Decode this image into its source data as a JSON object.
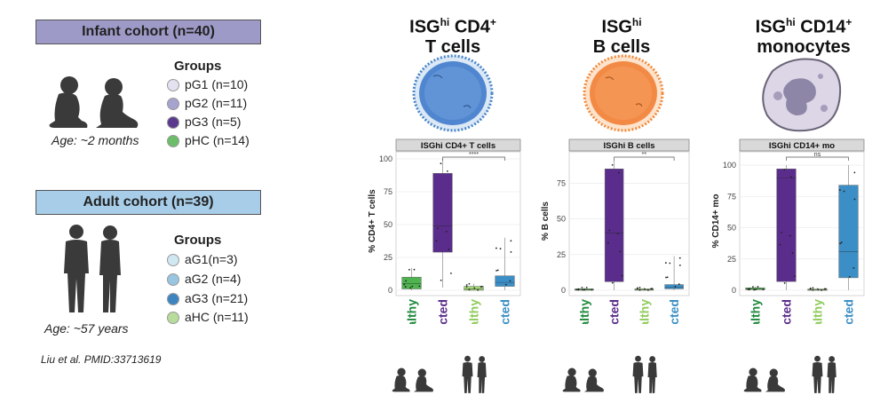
{
  "infant": {
    "banner": "Infant cohort (n=40)",
    "groups_title": "Groups",
    "groups": [
      {
        "label": "pG1 (n=10)",
        "color": "#e4e2f0"
      },
      {
        "label": "pG2 (n=11)",
        "color": "#a6a3cf"
      },
      {
        "label": "pG3 (n=5)",
        "color": "#5b3a8e"
      },
      {
        "label": "pHC (n=14)",
        "color": "#6cbd6a"
      }
    ],
    "age": "Age: ~2 months"
  },
  "adult": {
    "banner": "Adult cohort (n=39)",
    "groups_title": "Groups",
    "groups": [
      {
        "label": "aG1(n=3)",
        "color": "#cfe8f1"
      },
      {
        "label": "aG2 (n=4)",
        "color": "#98c6e0"
      },
      {
        "label": "aG3 (n=21)",
        "color": "#3d85c0"
      },
      {
        "label": "aHC (n=11)",
        "color": "#b8dc9c"
      }
    ],
    "age": "Age: ~57 years"
  },
  "citation": "Liu et al. PMID:33713619",
  "panels": [
    {
      "title_main": "ISG",
      "title_sup1": "hi",
      "title_rest": " CD4",
      "title_sup2": "+",
      "title_line2": "T cells"
    },
    {
      "title_main": "ISG",
      "title_sup1": "hi",
      "title_rest": "",
      "title_sup2": "",
      "title_line2": "B cells"
    },
    {
      "title_main": "ISG",
      "title_sup1": "hi",
      "title_rest": " CD14",
      "title_sup2": "+",
      "title_line2": "monocytes"
    }
  ],
  "chart_data": [
    {
      "type": "box",
      "title": "ISGhi CD4+ T cells",
      "ylabel": "% CD4+ T cells",
      "ylim": [
        0,
        100
      ],
      "yticks": [
        0,
        25,
        50,
        75,
        100
      ],
      "categories": [
        "Healthy",
        "Infected",
        "Healthy",
        "Infected"
      ],
      "colors": [
        "#4fb34f",
        "#5a2d8c",
        "#a6d97a",
        "#3b8fc6"
      ],
      "label_colors": [
        "#1e8a3c",
        "#5a2d8c",
        "#8fcb5a",
        "#3b8fc6"
      ],
      "boxes": [
        {
          "q1": 1,
          "median": 5,
          "q3": 10,
          "wlo": 0,
          "whi": 17
        },
        {
          "q1": 29,
          "median": 49,
          "q3": 89,
          "wlo": 2,
          "whi": 100
        },
        {
          "q1": 0,
          "median": 1,
          "q3": 3,
          "wlo": 0,
          "whi": 5
        },
        {
          "q1": 3,
          "median": 6,
          "q3": 11,
          "wlo": 0,
          "whi": 40
        }
      ],
      "significance": {
        "from": 1,
        "to": 3,
        "label": "****"
      }
    },
    {
      "type": "box",
      "title": "ISGhi B cells",
      "ylabel": "% B cells",
      "ylim": [
        0,
        92
      ],
      "yticks": [
        0,
        25,
        50,
        75
      ],
      "categories": [
        "Healthy",
        "Infected",
        "Healthy",
        "Infected"
      ],
      "colors": [
        "#4fb34f",
        "#5a2d8c",
        "#a6d97a",
        "#3b8fc6"
      ],
      "label_colors": [
        "#1e8a3c",
        "#5a2d8c",
        "#8fcb5a",
        "#3b8fc6"
      ],
      "boxes": [
        {
          "q1": 0,
          "median": 0.5,
          "q3": 1,
          "wlo": 0,
          "whi": 2
        },
        {
          "q1": 6,
          "median": 40,
          "q3": 85,
          "wlo": 0,
          "whi": 91
        },
        {
          "q1": 0,
          "median": 0.5,
          "q3": 1,
          "wlo": 0,
          "whi": 2
        },
        {
          "q1": 1,
          "median": 2,
          "q3": 4,
          "wlo": 0,
          "whi": 24
        }
      ],
      "significance": {
        "from": 1,
        "to": 3,
        "label": "**"
      }
    },
    {
      "type": "box",
      "title": "ISGhi CD14+ mo",
      "ylabel": "% CD14+ mo",
      "ylim": [
        0,
        105
      ],
      "yticks": [
        0,
        25,
        50,
        75,
        100
      ],
      "categories": [
        "Healthy",
        "Infected",
        "Healthy",
        "Infected"
      ],
      "colors": [
        "#4fb34f",
        "#5a2d8c",
        "#a6d97a",
        "#3b8fc6"
      ],
      "label_colors": [
        "#1e8a3c",
        "#5a2d8c",
        "#8fcb5a",
        "#3b8fc6"
      ],
      "boxes": [
        {
          "q1": 0.5,
          "median": 1,
          "q3": 2,
          "wlo": 0,
          "whi": 3
        },
        {
          "q1": 7,
          "median": 90,
          "q3": 97,
          "wlo": 0,
          "whi": 100
        },
        {
          "q1": 0,
          "median": 0.5,
          "q3": 1,
          "wlo": 0,
          "whi": 2
        },
        {
          "q1": 10,
          "median": 31,
          "q3": 84,
          "wlo": 0,
          "whi": 100
        }
      ],
      "significance": {
        "from": 1,
        "to": 3,
        "label": "ns"
      }
    }
  ]
}
